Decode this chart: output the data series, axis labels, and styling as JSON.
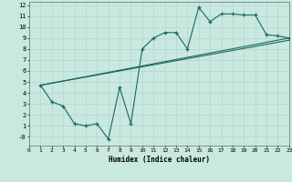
{
  "xlabel": "Humidex (Indice chaleur)",
  "bg_color": "#c8e8e0",
  "grid_color": "#b8d8d0",
  "line_color": "#1a6860",
  "line1_x": [
    1,
    2,
    3,
    4,
    5,
    6,
    7,
    8,
    9,
    10,
    11,
    12,
    13,
    14,
    15,
    16,
    17,
    18,
    19,
    20,
    21,
    22,
    23
  ],
  "line1_y": [
    4.7,
    3.2,
    2.8,
    1.2,
    1.0,
    1.2,
    -0.2,
    4.5,
    1.2,
    8.0,
    9.0,
    9.5,
    9.5,
    8.0,
    11.8,
    10.5,
    11.2,
    11.2,
    11.1,
    11.1,
    9.3,
    9.2,
    9.0
  ],
  "line2_x": [
    1,
    23
  ],
  "line2_y": [
    4.7,
    9.0
  ],
  "line3_x": [
    1,
    23
  ],
  "line3_y": [
    4.7,
    8.8
  ],
  "xlim": [
    0,
    23
  ],
  "ylim": [
    -0.8,
    12.3
  ],
  "xticks": [
    0,
    1,
    2,
    3,
    4,
    5,
    6,
    7,
    8,
    9,
    10,
    11,
    12,
    13,
    14,
    15,
    16,
    17,
    18,
    19,
    20,
    21,
    22,
    23
  ],
  "yticks": [
    0,
    1,
    2,
    3,
    4,
    5,
    6,
    7,
    8,
    9,
    10,
    11,
    12
  ]
}
